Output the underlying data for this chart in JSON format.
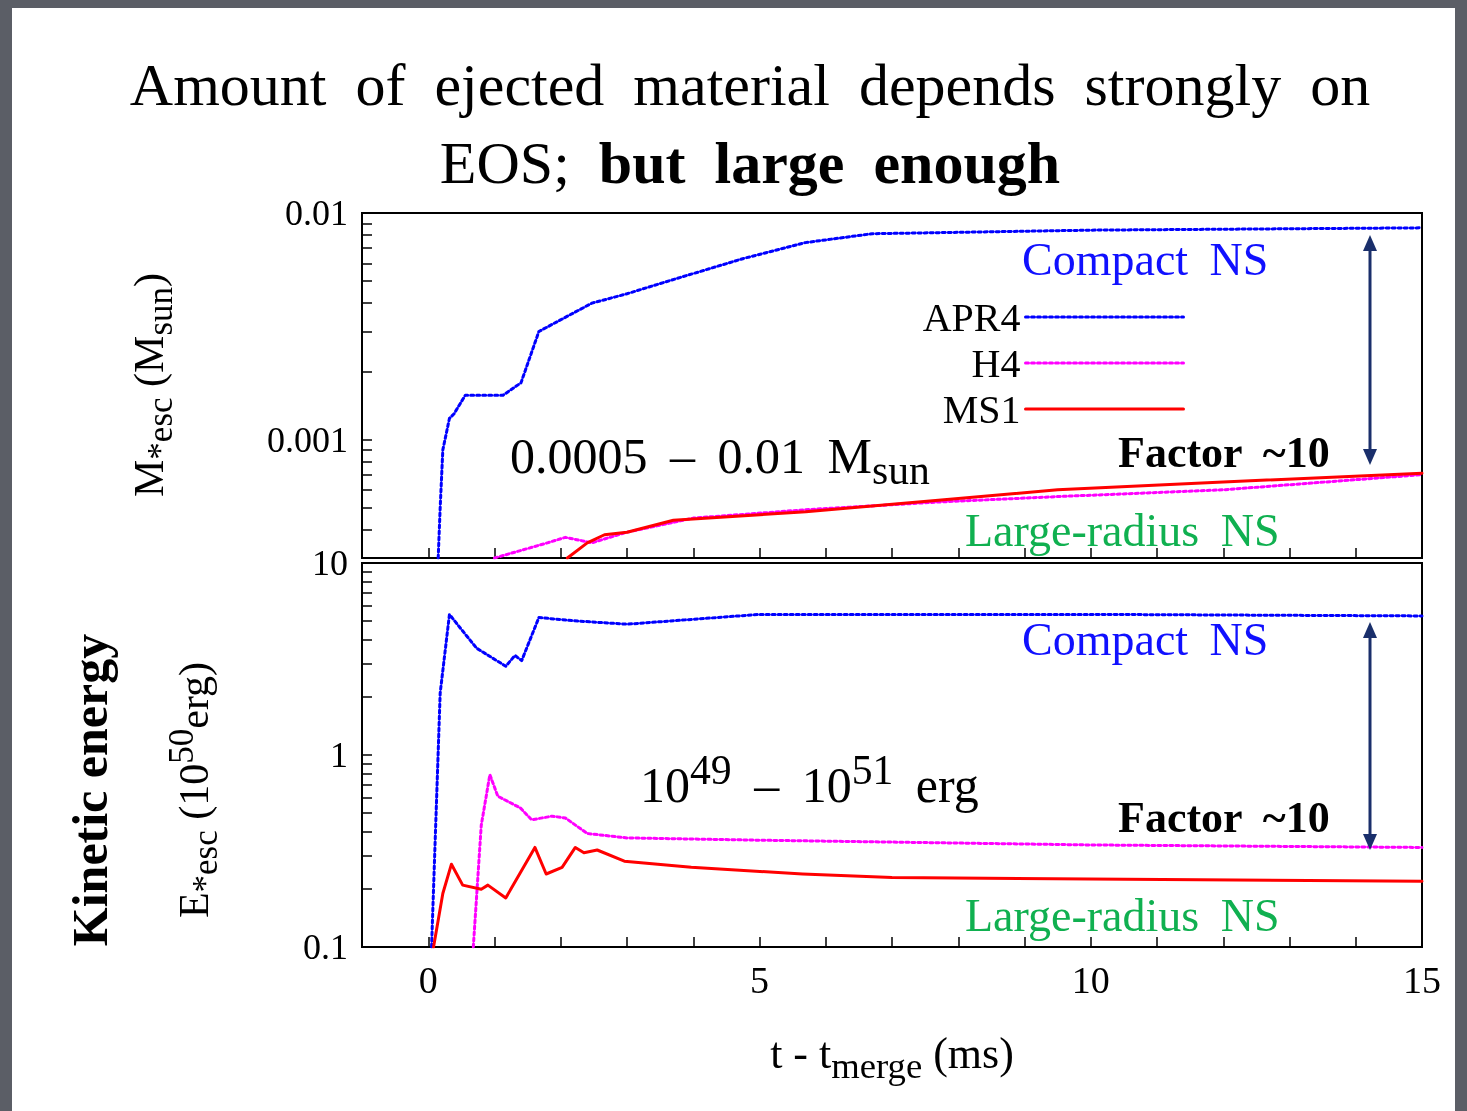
{
  "chart_data": [
    {
      "type": "line",
      "title": "Amount of ejected material depends strongly on EOS; but large enough",
      "ylabel": "M$_{*esc}$ (M$_{sun}$)",
      "log": "y",
      "grid": false,
      "legend": "top right",
      "marker": "none",
      "tick_labels": "y",
      "xlim": [
        -1,
        15
      ],
      "xticks": [
        0,
        {
          "value": 1,
          "label": null
        },
        {
          "value": 2,
          "label": null
        },
        {
          "value": 3,
          "label": null
        },
        {
          "value": 4,
          "label": null
        },
        5,
        {
          "value": 6,
          "label": null
        },
        {
          "value": 7,
          "label": null
        },
        {
          "value": 8,
          "label": null
        },
        {
          "value": 9,
          "label": null
        },
        10,
        {
          "value": 11,
          "label": null
        },
        {
          "value": 12,
          "label": null
        },
        {
          "value": 13,
          "label": null
        },
        {
          "value": 14,
          "label": null
        },
        15
      ],
      "ylim": [
        0.0003,
        0.01
      ],
      "yticks": [
        {
          "value": 0.0004,
          "label": null
        },
        {
          "value": 0.0005,
          "label": null
        },
        {
          "value": 0.0006,
          "label": null
        },
        {
          "value": 0.0007,
          "label": null
        },
        {
          "value": 0.0008,
          "label": null
        },
        {
          "value": 0.0009,
          "label": null
        },
        0.001,
        {
          "value": 0.002,
          "label": null
        },
        {
          "value": 0.003,
          "label": null
        },
        {
          "value": 0.004,
          "label": null
        },
        {
          "value": 0.005,
          "label": null
        },
        {
          "value": 0.006,
          "label": null
        },
        {
          "value": 0.007,
          "label": null
        },
        {
          "value": 0.008,
          "label": null
        },
        {
          "value": 0.009,
          "label": null
        },
        0.01
      ],
      "annotations": [
        "Compact NS",
        "0.0005 – 0.01 M$_{sun}$",
        "Factor ~10",
        "Large-radius NS"
      ],
      "series": [
        {
          "name": "APR4",
          "color": "#0000ff",
          "line_style": "dotted",
          "x": [
            0.15,
            0.18,
            0.22,
            0.32,
            0.39,
            0.56,
            1.13,
            1.4,
            1.67,
            2.47,
            3.0,
            3.81,
            4.76,
            5.69,
            6.7,
            10,
            15
          ],
          "values": [
            0.0003,
            0.0005,
            0.0009,
            0.00124,
            0.0013,
            0.00157,
            0.00157,
            0.00178,
            0.003,
            0.004,
            0.0044,
            0.0052,
            0.0063,
            0.0074,
            0.0081,
            0.0084,
            0.0086
          ]
        },
        {
          "name": "H4",
          "color": "#ff00ff",
          "line_style": "dotted",
          "x": [
            1.0,
            1.8,
            2.07,
            2.47,
            3.0,
            4.0,
            5.7,
            7.7,
            9.5,
            12,
            15
          ],
          "values": [
            0.0003,
            0.00035,
            0.00037,
            0.00035,
            0.00039,
            0.00045,
            0.00049,
            0.00053,
            0.00056,
            0.0006,
            0.0007
          ]
        },
        {
          "name": "MS1",
          "color": "#ff0000",
          "line_style": "solid",
          "x": [
            2.1,
            2.4,
            2.66,
            3.0,
            3.7,
            5.7,
            7.7,
            9.5,
            12,
            15
          ],
          "values": [
            0.0003,
            0.00035,
            0.00038,
            0.00039,
            0.00044,
            0.00048,
            0.00054,
            0.0006,
            0.00065,
            0.00071
          ]
        }
      ]
    },
    {
      "type": "line",
      "xlabel": "t - t$_{merge}$ (ms)",
      "ylabel": "Kinetic energy\nE$_{*esc}$ (10$^{50}$erg)",
      "log": "y",
      "grid": false,
      "marker": "none",
      "xlim": [
        -1,
        15
      ],
      "xticks": [
        0,
        {
          "value": 1,
          "label": null
        },
        {
          "value": 2,
          "label": null
        },
        {
          "value": 3,
          "label": null
        },
        {
          "value": 4,
          "label": null
        },
        5,
        {
          "value": 6,
          "label": null
        },
        {
          "value": 7,
          "label": null
        },
        {
          "value": 8,
          "label": null
        },
        {
          "value": 9,
          "label": null
        },
        10,
        {
          "value": 11,
          "label": null
        },
        {
          "value": 12,
          "label": null
        },
        {
          "value": 13,
          "label": null
        },
        {
          "value": 14,
          "label": null
        },
        15
      ],
      "ylim": [
        0.1,
        10
      ],
      "yticks": [
        0.1,
        {
          "value": 0.2,
          "label": null
        },
        {
          "value": 0.3,
          "label": null
        },
        {
          "value": 0.4,
          "label": null
        },
        {
          "value": 0.5,
          "label": null
        },
        {
          "value": 0.6,
          "label": null
        },
        {
          "value": 0.7,
          "label": null
        },
        {
          "value": 0.8,
          "label": null
        },
        {
          "value": 0.9,
          "label": null
        },
        1,
        {
          "value": 2,
          "label": null
        },
        {
          "value": 3,
          "label": null
        },
        {
          "value": 4,
          "label": null
        },
        {
          "value": 5,
          "label": null
        },
        {
          "value": 6,
          "label": null
        },
        {
          "value": 7,
          "label": null
        },
        {
          "value": 8,
          "label": null
        },
        {
          "value": 9,
          "label": null
        },
        10
      ],
      "annotations": [
        "Compact NS",
        "10$^{49}$ – 10$^{51}$ erg",
        "Factor ~10",
        "Large-radius NS"
      ],
      "series": [
        {
          "color": "#0000ff",
          "line_style": "dotted",
          "x": [
            0.05,
            0.18,
            0.32,
            0.48,
            0.73,
            1.17,
            1.31,
            1.41,
            1.67,
            2.2,
            3.0,
            5.0,
            6.4,
            10,
            15
          ],
          "values": [
            0.1,
            2.1,
            5.4,
            4.6,
            3.6,
            2.9,
            3.3,
            3.1,
            5.2,
            5.0,
            4.8,
            5.4,
            5.4,
            5.4,
            5.3
          ]
        },
        {
          "color": "#ff00ff",
          "line_style": "dotted",
          "x": [
            0.68,
            0.8,
            0.93,
            1.05,
            1.39,
            1.56,
            1.87,
            2.07,
            2.4,
            3.0,
            5.0,
            10,
            15
          ],
          "values": [
            0.1,
            0.43,
            0.79,
            0.61,
            0.53,
            0.46,
            0.48,
            0.47,
            0.39,
            0.37,
            0.36,
            0.34,
            0.33
          ]
        },
        {
          "color": "#ff0000",
          "line_style": "solid",
          "x": [
            0.08,
            0.22,
            0.35,
            0.52,
            0.8,
            0.9,
            1.17,
            1.61,
            1.78,
            2.02,
            2.22,
            2.35,
            2.55,
            2.96,
            3.97,
            5.65,
            7,
            15
          ],
          "values": [
            0.1,
            0.19,
            0.27,
            0.21,
            0.2,
            0.21,
            0.18,
            0.33,
            0.24,
            0.26,
            0.33,
            0.31,
            0.32,
            0.28,
            0.26,
            0.24,
            0.23,
            0.22
          ]
        }
      ]
    }
  ]
}
